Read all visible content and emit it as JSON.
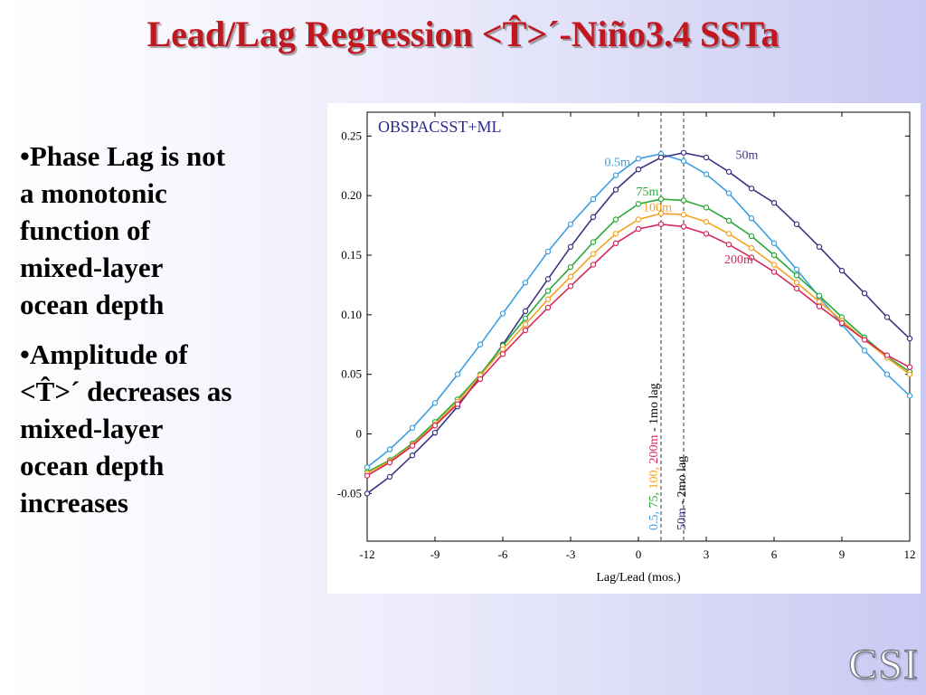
{
  "slide": {
    "title": "Lead/Lag Regression <T̂>´-Niño3.4 SSTa",
    "bullets": [
      {
        "mark": "•",
        "text": "Phase Lag is not\n a monotonic\n function of\n mixed-layer\n ocean depth"
      },
      {
        "mark": "•",
        "text": "Amplitude of\n <T̂>´ decreases as\n mixed-layer\n ocean depth\n increases"
      }
    ],
    "logo": "CSI"
  },
  "chart_data": {
    "type": "line",
    "title": "OBSPACSST+ML",
    "xlabel": "Lag/Lead (mos.)",
    "ylabel": "",
    "xlim": [
      -12,
      12
    ],
    "ylim": [
      -0.09,
      0.27
    ],
    "xticks": [
      -12,
      -9,
      -6,
      -3,
      0,
      3,
      6,
      9,
      12
    ],
    "yticks": [
      -0.05,
      0,
      0.05,
      0.1,
      0.15,
      0.2,
      0.25
    ],
    "ytick_labels": [
      "-0.05",
      "0",
      "0.05",
      "0.10",
      "0.15",
      "0.20",
      "0.25"
    ],
    "x": [
      -12,
      -11,
      -10,
      -9,
      -8,
      -7,
      -6,
      -5,
      -4,
      -3,
      -2,
      -1,
      0,
      1,
      2,
      3,
      4,
      5,
      6,
      7,
      8,
      9,
      10,
      11,
      12
    ],
    "series": [
      {
        "name": "0.5m",
        "color": "#3d9fe0",
        "values": [
          -0.028,
          -0.013,
          0.005,
          0.026,
          0.05,
          0.075,
          0.101,
          0.127,
          0.153,
          0.176,
          0.197,
          0.217,
          0.231,
          0.235,
          0.229,
          0.218,
          0.202,
          0.181,
          0.16,
          0.138,
          0.115,
          0.092,
          0.07,
          0.05,
          0.032
        ]
      },
      {
        "name": "50m",
        "color": "#3b3480",
        "values": [
          -0.05,
          -0.036,
          -0.018,
          0.001,
          0.023,
          0.048,
          0.075,
          0.103,
          0.13,
          0.157,
          0.182,
          0.205,
          0.222,
          0.232,
          0.236,
          0.232,
          0.22,
          0.206,
          0.194,
          0.176,
          0.157,
          0.137,
          0.118,
          0.098,
          0.08
        ]
      },
      {
        "name": "75m",
        "color": "#2aa83a",
        "values": [
          -0.032,
          -0.022,
          -0.008,
          0.01,
          0.029,
          0.05,
          0.074,
          0.097,
          0.12,
          0.14,
          0.161,
          0.18,
          0.193,
          0.197,
          0.196,
          0.19,
          0.179,
          0.166,
          0.15,
          0.133,
          0.116,
          0.098,
          0.081,
          0.065,
          0.052
        ]
      },
      {
        "name": "100m",
        "color": "#f5a21e",
        "values": [
          -0.033,
          -0.023,
          -0.009,
          0.008,
          0.027,
          0.049,
          0.071,
          0.092,
          0.113,
          0.132,
          0.151,
          0.168,
          0.18,
          0.185,
          0.184,
          0.178,
          0.168,
          0.156,
          0.142,
          0.127,
          0.111,
          0.095,
          0.079,
          0.064,
          0.05
        ]
      },
      {
        "name": "200m",
        "color": "#d42a5a",
        "values": [
          -0.035,
          -0.024,
          -0.01,
          0.007,
          0.025,
          0.046,
          0.067,
          0.087,
          0.106,
          0.124,
          0.142,
          0.16,
          0.172,
          0.176,
          0.174,
          0.168,
          0.159,
          0.148,
          0.136,
          0.122,
          0.107,
          0.093,
          0.079,
          0.066,
          0.056
        ]
      }
    ],
    "series_labels": [
      {
        "series": "0.5m",
        "x": -1.5,
        "y": 0.225
      },
      {
        "series": "50m",
        "x": 4.3,
        "y": 0.231
      },
      {
        "series": "75m",
        "x": -0.1,
        "y": 0.2
      },
      {
        "series": "100m",
        "x": 0.2,
        "y": 0.187
      },
      {
        "series": "200m",
        "x": 3.8,
        "y": 0.143
      }
    ],
    "vlines": [
      {
        "x": 1,
        "label_parts": [
          {
            "text": "0.5, ",
            "color": "#3d9fe0"
          },
          {
            "text": "75, ",
            "color": "#2aa83a"
          },
          {
            "text": "100, ",
            "color": "#f5a21e"
          },
          {
            "text": "200m",
            "color": "#d42a5a"
          },
          {
            "text": " - 1mo lag",
            "color": "#000000"
          }
        ]
      },
      {
        "x": 2,
        "label_parts": [
          {
            "text": "50m",
            "color": "#3b3480"
          },
          {
            "text": " - 2mo lag",
            "color": "#000000"
          }
        ]
      }
    ],
    "colors": {
      "axis": "#000000",
      "title": "#2d2a8a",
      "background": "#ffffff"
    },
    "grid": false,
    "legend": "none"
  }
}
